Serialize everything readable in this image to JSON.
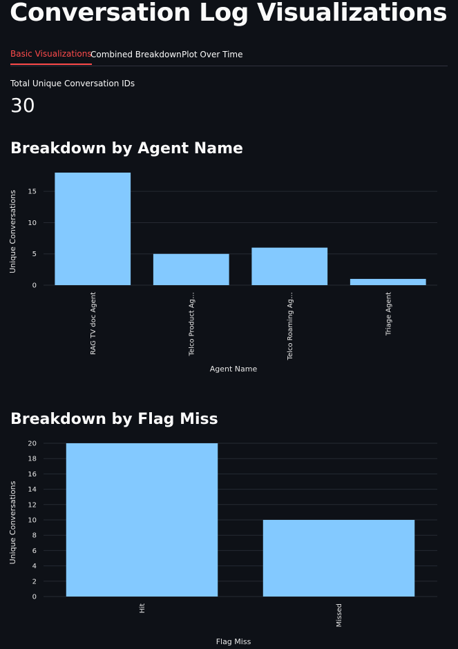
{
  "page": {
    "title": "Conversation Log Visualizations"
  },
  "tabs": [
    {
      "label": "Basic Visualizations",
      "active": true
    },
    {
      "label": "Combined Breakdown",
      "active": false
    },
    {
      "label": "Plot Over Time",
      "active": false
    }
  ],
  "metric": {
    "label": "Total Unique Conversation IDs",
    "value": "30"
  },
  "sections": {
    "agent": {
      "title": "Breakdown by Agent Name"
    },
    "flag": {
      "title": "Breakdown by Flag Miss"
    }
  },
  "colors": {
    "background": "#0e1117",
    "bar": "#83c9ff",
    "grid": "#262a33",
    "active_tab": "#ff4b4b"
  },
  "chart_data": [
    {
      "type": "bar",
      "title": "",
      "xlabel": "Agent Name",
      "ylabel": "Unique Conversations",
      "categories": [
        "RAG TV doc Agent",
        "Telco Product Ag…",
        "Telco Roaming Ag…",
        "Triage Agent"
      ],
      "values": [
        18,
        5,
        6,
        1
      ],
      "yticks": [
        0,
        5,
        10,
        15
      ],
      "ylim": [
        0,
        18
      ],
      "grid": true
    },
    {
      "type": "bar",
      "title": "",
      "xlabel": "Flag Miss",
      "ylabel": "Unique Conversations",
      "categories": [
        "Hit",
        "Missed"
      ],
      "values": [
        20,
        10
      ],
      "yticks": [
        0,
        2,
        4,
        6,
        8,
        10,
        12,
        14,
        16,
        18,
        20
      ],
      "ylim": [
        0,
        20
      ],
      "grid": true
    }
  ]
}
